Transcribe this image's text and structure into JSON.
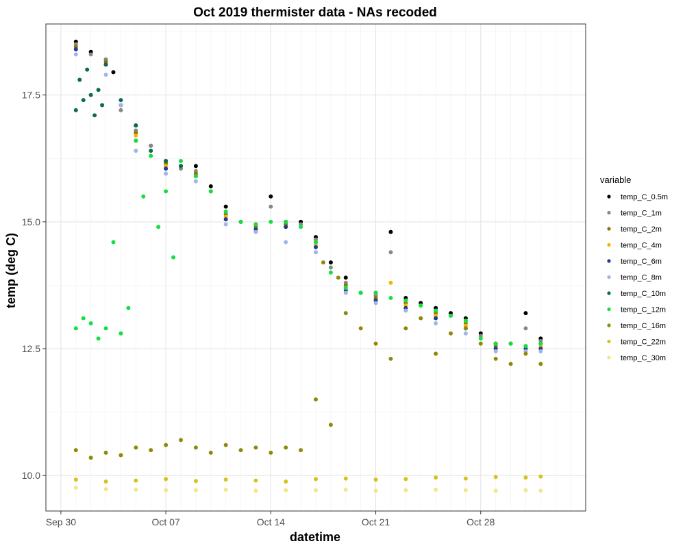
{
  "chart_data": {
    "type": "scatter",
    "title": "Oct 2019 thermister data - NAs recoded",
    "xlabel": "datetime",
    "ylabel": "temp (deg C)",
    "x_axis": {
      "type": "date",
      "range": [
        "2019-09-29",
        "2019-11-04"
      ],
      "ticks": [
        {
          "date": "2019-09-30",
          "label": "Sep 30"
        },
        {
          "date": "2019-10-07",
          "label": "Oct 07"
        },
        {
          "date": "2019-10-14",
          "label": "Oct 14"
        },
        {
          "date": "2019-10-21",
          "label": "Oct 21"
        },
        {
          "date": "2019-10-28",
          "label": "Oct 28"
        }
      ]
    },
    "y_axis": {
      "range": [
        9.3,
        18.9
      ],
      "ticks": [
        {
          "value": 10.0,
          "label": "10.0"
        },
        {
          "value": 12.5,
          "label": "12.5"
        },
        {
          "value": 15.0,
          "label": "15.0"
        },
        {
          "value": 17.5,
          "label": "17.5"
        }
      ]
    },
    "grid": true,
    "legend": {
      "title": "variable",
      "position": "right"
    },
    "series": [
      {
        "name": "temp_C_0.5m",
        "color": "#000000",
        "x": [
          "2019-10-01",
          "2019-10-02",
          "2019-10-03",
          "2019-10-03T12:00",
          "2019-10-04",
          "2019-10-05",
          "2019-10-06",
          "2019-10-07",
          "2019-10-08",
          "2019-10-09",
          "2019-10-10",
          "2019-10-11",
          "2019-10-12",
          "2019-10-13",
          "2019-10-14",
          "2019-10-15",
          "2019-10-16",
          "2019-10-17",
          "2019-10-18",
          "2019-10-19",
          "2019-10-20",
          "2019-10-21",
          "2019-10-22",
          "2019-10-23",
          "2019-10-24",
          "2019-10-25",
          "2019-10-26",
          "2019-10-27",
          "2019-10-28",
          "2019-10-29",
          "2019-10-30",
          "2019-10-31",
          "2019-11-01"
        ],
        "y": [
          18.55,
          18.35,
          18.2,
          17.95,
          17.3,
          16.9,
          16.5,
          16.2,
          16.1,
          16.1,
          15.7,
          15.3,
          15.0,
          14.95,
          15.5,
          15.0,
          15.0,
          14.7,
          14.2,
          13.9,
          13.6,
          13.6,
          14.8,
          13.5,
          13.4,
          13.3,
          13.2,
          13.1,
          12.8,
          12.6,
          12.6,
          13.2,
          12.7
        ]
      },
      {
        "name": "temp_C_1m",
        "color": "#888888",
        "x": [
          "2019-10-01",
          "2019-10-02",
          "2019-10-03",
          "2019-10-04",
          "2019-10-05",
          "2019-10-06",
          "2019-10-07",
          "2019-10-08",
          "2019-10-09",
          "2019-10-10",
          "2019-10-11",
          "2019-10-12",
          "2019-10-13",
          "2019-10-14",
          "2019-10-15",
          "2019-10-16",
          "2019-10-17",
          "2019-10-18",
          "2019-10-19",
          "2019-10-20",
          "2019-10-21",
          "2019-10-22",
          "2019-10-23",
          "2019-10-24",
          "2019-10-25",
          "2019-10-26",
          "2019-10-27",
          "2019-10-28",
          "2019-10-29",
          "2019-10-30",
          "2019-10-31",
          "2019-11-01"
        ],
        "y": [
          18.5,
          18.3,
          18.2,
          17.2,
          16.8,
          16.5,
          16.2,
          16.05,
          16.0,
          15.6,
          15.2,
          15.0,
          14.95,
          15.3,
          15.0,
          14.95,
          14.65,
          14.1,
          13.8,
          13.6,
          13.55,
          14.4,
          13.45,
          13.35,
          13.25,
          13.15,
          13.05,
          12.75,
          12.6,
          12.6,
          12.9,
          12.65
        ]
      },
      {
        "name": "temp_C_2m",
        "color": "#8B7500",
        "x": [
          "2019-10-01",
          "2019-10-03",
          "2019-10-05",
          "2019-10-07",
          "2019-10-09",
          "2019-10-11",
          "2019-10-13",
          "2019-10-15",
          "2019-10-17",
          "2019-10-19",
          "2019-10-21",
          "2019-10-23",
          "2019-10-25",
          "2019-10-27",
          "2019-10-29",
          "2019-10-31",
          "2019-11-01"
        ],
        "y": [
          18.45,
          18.15,
          16.75,
          16.15,
          15.95,
          15.15,
          14.9,
          14.95,
          14.6,
          13.75,
          13.5,
          13.4,
          13.2,
          13.0,
          12.55,
          12.55,
          12.6
        ]
      },
      {
        "name": "temp_C_4m",
        "color": "#F2B600",
        "x": [
          "2019-10-01",
          "2019-10-03",
          "2019-10-05",
          "2019-10-07",
          "2019-10-09",
          "2019-10-11",
          "2019-10-13",
          "2019-10-15",
          "2019-10-17",
          "2019-10-19",
          "2019-10-21",
          "2019-10-22",
          "2019-10-23",
          "2019-10-25",
          "2019-10-27",
          "2019-10-29",
          "2019-10-31",
          "2019-11-01"
        ],
        "y": [
          18.4,
          18.1,
          16.7,
          16.1,
          15.9,
          15.1,
          14.85,
          14.9,
          14.55,
          13.7,
          13.45,
          13.8,
          13.35,
          13.15,
          12.95,
          12.5,
          12.5,
          12.55
        ]
      },
      {
        "name": "temp_C_6m",
        "color": "#1F3A8F",
        "x": [
          "2019-10-01",
          "2019-10-03",
          "2019-10-05",
          "2019-10-07",
          "2019-10-09",
          "2019-10-11",
          "2019-10-13",
          "2019-10-15",
          "2019-10-17",
          "2019-10-19",
          "2019-10-21",
          "2019-10-23",
          "2019-10-25",
          "2019-10-27",
          "2019-10-29",
          "2019-10-31",
          "2019-11-01"
        ],
        "y": [
          18.4,
          18.1,
          16.6,
          16.05,
          15.9,
          15.05,
          14.85,
          14.9,
          14.5,
          13.65,
          13.45,
          13.3,
          13.1,
          12.9,
          12.5,
          12.5,
          12.5
        ]
      },
      {
        "name": "temp_C_8m",
        "color": "#A0B4E6",
        "x": [
          "2019-10-01",
          "2019-10-03",
          "2019-10-04",
          "2019-10-05",
          "2019-10-07",
          "2019-10-09",
          "2019-10-11",
          "2019-10-13",
          "2019-10-15",
          "2019-10-17",
          "2019-10-19",
          "2019-10-21",
          "2019-10-23",
          "2019-10-25",
          "2019-10-27",
          "2019-10-29",
          "2019-10-31",
          "2019-11-01"
        ],
        "y": [
          18.3,
          17.9,
          17.3,
          16.4,
          15.95,
          15.8,
          14.95,
          14.8,
          14.6,
          14.4,
          13.6,
          13.4,
          13.25,
          13.0,
          12.8,
          12.45,
          12.45,
          12.45
        ]
      },
      {
        "name": "temp_C_10m",
        "color": "#0A6B50",
        "x": [
          "2019-10-01",
          "2019-10-01T06:00",
          "2019-10-01T12:00",
          "2019-10-01T18:00",
          "2019-10-02",
          "2019-10-02T06:00",
          "2019-10-02T12:00",
          "2019-10-02T18:00",
          "2019-10-03",
          "2019-10-04",
          "2019-10-05",
          "2019-10-06",
          "2019-10-07",
          "2019-10-08"
        ],
        "y": [
          17.2,
          17.8,
          17.4,
          18.0,
          17.5,
          17.1,
          17.6,
          17.3,
          18.1,
          17.4,
          16.9,
          16.4,
          16.2,
          16.1
        ]
      },
      {
        "name": "temp_C_12m",
        "color": "#12E040",
        "x": [
          "2019-10-01",
          "2019-10-01T12:00",
          "2019-10-02",
          "2019-10-02T12:00",
          "2019-10-03",
          "2019-10-03T12:00",
          "2019-10-04",
          "2019-10-04T12:00",
          "2019-10-05",
          "2019-10-05T12:00",
          "2019-10-06",
          "2019-10-06T12:00",
          "2019-10-07",
          "2019-10-07T12:00",
          "2019-10-08",
          "2019-10-09",
          "2019-10-10",
          "2019-10-11",
          "2019-10-12",
          "2019-10-13",
          "2019-10-14",
          "2019-10-15",
          "2019-10-16",
          "2019-10-17",
          "2019-10-18",
          "2019-10-19",
          "2019-10-20",
          "2019-10-21",
          "2019-10-22",
          "2019-10-23",
          "2019-10-24",
          "2019-10-25",
          "2019-10-26",
          "2019-10-27",
          "2019-10-28",
          "2019-10-29",
          "2019-10-30",
          "2019-10-31",
          "2019-11-01"
        ],
        "y": [
          12.9,
          13.1,
          13.0,
          12.7,
          12.9,
          14.6,
          12.8,
          13.3,
          16.6,
          15.5,
          16.3,
          14.9,
          15.6,
          14.3,
          16.2,
          15.9,
          15.6,
          15.2,
          15.0,
          14.95,
          15.0,
          15.0,
          14.9,
          14.6,
          14.0,
          13.7,
          13.6,
          13.6,
          13.5,
          13.45,
          13.35,
          13.25,
          13.15,
          13.05,
          12.7,
          12.6,
          12.6,
          12.55,
          12.6
        ]
      },
      {
        "name": "temp_C_16m",
        "color": "#8F8A06",
        "x": [
          "2019-10-01",
          "2019-10-02",
          "2019-10-03",
          "2019-10-04",
          "2019-10-05",
          "2019-10-06",
          "2019-10-07",
          "2019-10-08",
          "2019-10-09",
          "2019-10-10",
          "2019-10-11",
          "2019-10-12",
          "2019-10-13",
          "2019-10-14",
          "2019-10-15",
          "2019-10-16",
          "2019-10-17",
          "2019-10-17T12:00",
          "2019-10-18",
          "2019-10-18T12:00",
          "2019-10-19",
          "2019-10-20",
          "2019-10-21",
          "2019-10-22",
          "2019-10-23",
          "2019-10-24",
          "2019-10-25",
          "2019-10-26",
          "2019-10-27",
          "2019-10-28",
          "2019-10-29",
          "2019-10-30",
          "2019-10-31",
          "2019-11-01"
        ],
        "y": [
          10.5,
          10.35,
          10.45,
          10.4,
          10.55,
          10.5,
          10.6,
          10.7,
          10.55,
          10.45,
          10.6,
          10.5,
          10.55,
          10.45,
          10.55,
          10.5,
          11.5,
          14.2,
          11.0,
          13.9,
          13.2,
          12.9,
          12.6,
          12.3,
          12.9,
          13.1,
          12.4,
          12.8,
          12.9,
          12.6,
          12.3,
          12.2,
          12.4,
          12.2
        ]
      },
      {
        "name": "temp_C_22m",
        "color": "#D4C41A",
        "x": [
          "2019-10-01",
          "2019-10-03",
          "2019-10-05",
          "2019-10-07",
          "2019-10-09",
          "2019-10-11",
          "2019-10-13",
          "2019-10-15",
          "2019-10-17",
          "2019-10-19",
          "2019-10-21",
          "2019-10-23",
          "2019-10-25",
          "2019-10-27",
          "2019-10-29",
          "2019-10-31",
          "2019-11-01"
        ],
        "y": [
          9.92,
          9.88,
          9.9,
          9.93,
          9.89,
          9.92,
          9.9,
          9.88,
          9.93,
          9.94,
          9.92,
          9.93,
          9.96,
          9.94,
          9.97,
          9.96,
          9.98
        ]
      },
      {
        "name": "temp_C_30m",
        "color": "#F2E58C",
        "x": [
          "2019-10-01",
          "2019-10-03",
          "2019-10-05",
          "2019-10-07",
          "2019-10-09",
          "2019-10-11",
          "2019-10-13",
          "2019-10-15",
          "2019-10-17",
          "2019-10-19",
          "2019-10-21",
          "2019-10-23",
          "2019-10-25",
          "2019-10-27",
          "2019-10-29",
          "2019-10-31",
          "2019-11-01"
        ],
        "y": [
          9.76,
          9.73,
          9.72,
          9.71,
          9.71,
          9.72,
          9.7,
          9.71,
          9.71,
          9.72,
          9.7,
          9.71,
          9.72,
          9.71,
          9.7,
          9.71,
          9.7
        ]
      }
    ]
  }
}
